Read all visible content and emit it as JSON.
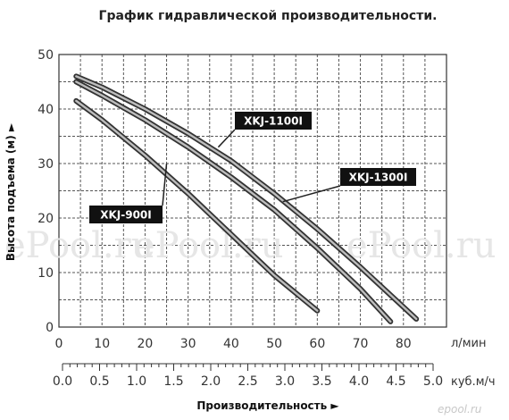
{
  "chart_data": {
    "type": "line",
    "title": "График гидравлической производительности.",
    "xlabel": "Производительность ►",
    "ylabel": "Высота подъема (м) ►",
    "x_unit_primary": "л/мин",
    "x_unit_secondary": "куб.м/ч",
    "xlim": [
      0,
      90
    ],
    "ylim": [
      0,
      50
    ],
    "x_ticks": [
      0,
      10,
      20,
      30,
      40,
      50,
      60,
      70,
      80
    ],
    "x_ticks_secondary": [
      "0.0",
      "0.5",
      "1.0",
      "1.5",
      "2.0",
      "2.5",
      "3.0",
      "3.5",
      "4.0",
      "4.5",
      "5.0"
    ],
    "y_ticks": [
      0,
      10,
      20,
      30,
      40,
      50
    ],
    "grid": true,
    "series": [
      {
        "name": "XKJ-900I",
        "x": [
          4,
          10,
          20,
          30,
          40,
          50,
          60
        ],
        "y": [
          41.5,
          38,
          31.5,
          24.5,
          17,
          9.5,
          3
        ]
      },
      {
        "name": "XKJ-1100I",
        "x": [
          4,
          10,
          20,
          30,
          40,
          50,
          60,
          70,
          77
        ],
        "y": [
          45,
          42.5,
          38,
          33,
          27.5,
          21.5,
          14.5,
          7,
          1
        ]
      },
      {
        "name": "XKJ-1300I",
        "x": [
          4,
          10,
          20,
          30,
          40,
          50,
          60,
          70,
          83
        ],
        "y": [
          46,
          44,
          40,
          35.5,
          30.5,
          24.5,
          18,
          11,
          1.5
        ]
      }
    ]
  },
  "watermarks": [
    "ePool.ru",
    "ePool.ru",
    "ePool.ru",
    "epool.ru"
  ]
}
